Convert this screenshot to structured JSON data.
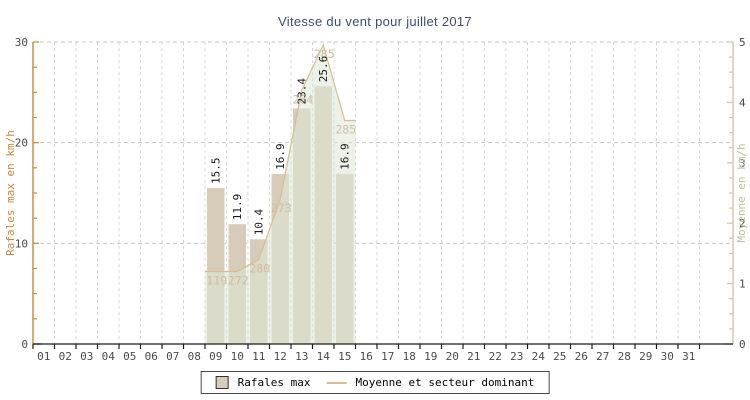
{
  "chart_data": {
    "type": "bar",
    "title": "Vitesse du vent pour juillet 2017",
    "title_color": "#3e4d6d",
    "x_categories": [
      "01",
      "02",
      "03",
      "04",
      "05",
      "06",
      "07",
      "08",
      "09",
      "10",
      "11",
      "12",
      "13",
      "14",
      "15",
      "16",
      "17",
      "18",
      "19",
      "20",
      "21",
      "22",
      "23",
      "24",
      "25",
      "26",
      "27",
      "28",
      "29",
      "30",
      "31"
    ],
    "x_tick_label_color": "#4a4a4a",
    "left_axis": {
      "label": "Rafales max en km/h",
      "min": 0,
      "max": 30,
      "major_ticks": [
        "0",
        "10",
        "20",
        "30"
      ],
      "minor_step": 2.5,
      "axis_color": "#c08a40",
      "tick_label_color": "#4a4a4a"
    },
    "right_axis": {
      "label": "Moyenne en km/h",
      "min": 0,
      "max": 5,
      "major_ticks": [
        "0",
        "1",
        "2",
        "3",
        "4",
        "5"
      ],
      "minor_step": 0.25,
      "axis_color": "#d2c6a4",
      "label_color": "#b9c2a2",
      "tick_label_color": "#4a4a4a"
    },
    "grid": {
      "horizontal_values": [
        10,
        20,
        30
      ],
      "horizontal_color": "#c9c9c9",
      "vertical_color": "#d4d7da"
    },
    "bottom_axis_color": "#1a1a1a",
    "series": [
      {
        "name": "Rafales max",
        "type": "bar",
        "axis": "left",
        "fill": "#d7ccb9",
        "value_label_color": "#1a1a1a",
        "points": [
          {
            "day": "09",
            "value": 15.5,
            "label": "15.5"
          },
          {
            "day": "10",
            "value": 11.9,
            "label": "11.9"
          },
          {
            "day": "11",
            "value": 10.4,
            "label": "10.4"
          },
          {
            "day": "12",
            "value": 16.9,
            "label": "16.9"
          },
          {
            "day": "13",
            "value": 23.4,
            "label": "23.4"
          },
          {
            "day": "14",
            "value": 25.6,
            "label": "25.6"
          },
          {
            "day": "15",
            "value": 16.9,
            "label": "16.9"
          }
        ]
      },
      {
        "name": "Moyenne et secteur dominant",
        "type": "area",
        "axis": "right",
        "line_color": "#d6bd92",
        "fill": "#dce8d5",
        "fill_opacity": 0.55,
        "direction_label_color": "#cfbda4",
        "points": [
          {
            "day": "09",
            "value": 1.2,
            "direction": "119"
          },
          {
            "day": "10",
            "value": 1.2,
            "direction": "272"
          },
          {
            "day": "11",
            "value": 1.4,
            "direction": "280"
          },
          {
            "day": "12",
            "value": 2.4,
            "direction": "273"
          },
          {
            "day": "13",
            "value": 4.2,
            "direction": "284"
          },
          {
            "day": "14",
            "value": 4.95,
            "direction": "285"
          },
          {
            "day": "15",
            "value": 3.7,
            "direction": "285"
          }
        ]
      }
    ]
  }
}
